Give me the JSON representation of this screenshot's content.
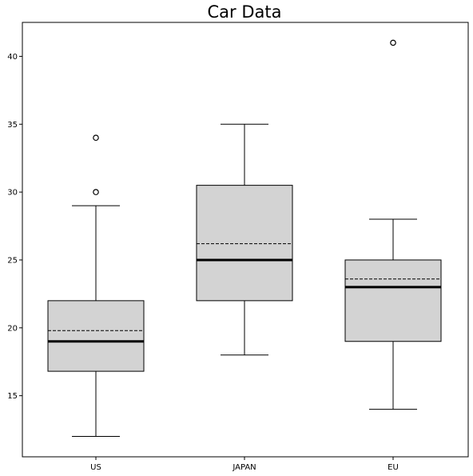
{
  "chart_data": {
    "type": "box",
    "title": "Car Data",
    "xlabel": "",
    "ylabel": "",
    "categories": [
      "US",
      "JAPAN",
      "EU"
    ],
    "ylim": [
      10.5,
      42.5
    ],
    "yticks": [
      15,
      20,
      25,
      30,
      35,
      40
    ],
    "ytick_labels": [
      "15",
      "20",
      "25",
      "30",
      "35",
      "40"
    ],
    "boxes": [
      {
        "category": "US",
        "whisker_low": 12,
        "q1": 16.8,
        "median": 19,
        "mean": 19.8,
        "q3": 22,
        "whisker_high": 29,
        "outliers": [
          30,
          34
        ]
      },
      {
        "category": "JAPAN",
        "whisker_low": 18,
        "q1": 22,
        "median": 25,
        "mean": 26.2,
        "q3": 30.5,
        "whisker_high": 35,
        "outliers": []
      },
      {
        "category": "EU",
        "whisker_low": 14,
        "q1": 19,
        "median": 23,
        "mean": 23.6,
        "q3": 25,
        "whisker_high": 28,
        "outliers": [
          41
        ]
      }
    ],
    "box_fill": "#d3d3d3",
    "line_color": "#000000",
    "grid": false,
    "legend": "none"
  }
}
